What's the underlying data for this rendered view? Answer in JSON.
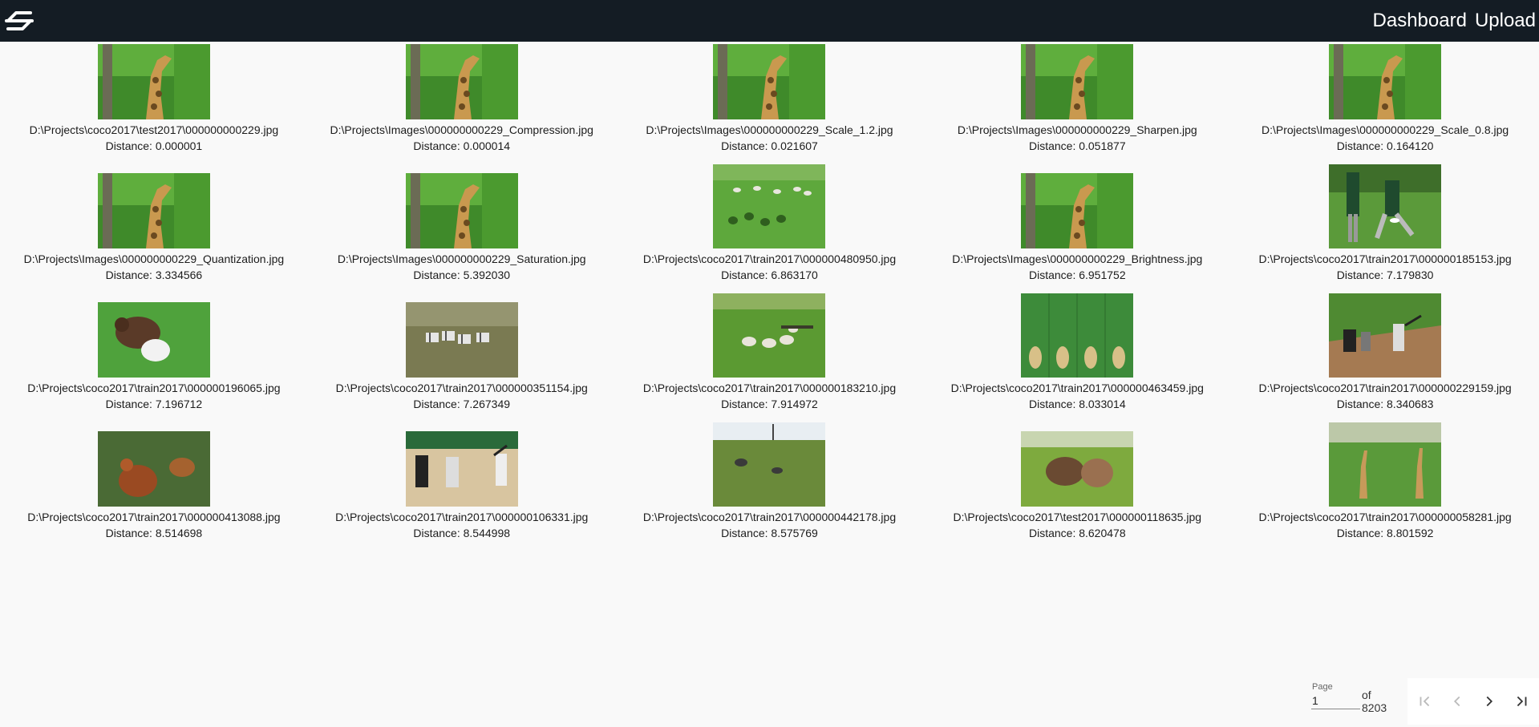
{
  "header": {
    "logo_icon": "flow-logo-icon",
    "nav": [
      {
        "label": "Dashboard"
      },
      {
        "label": "Upload"
      }
    ]
  },
  "results": [
    {
      "path": "D:\\Projects\\coco2017\\test2017\\000000000229.jpg",
      "distance": "Distance: 0.000001",
      "scene": "giraffe"
    },
    {
      "path": "D:\\Projects\\Images\\000000000229_Compression.jpg",
      "distance": "Distance: 0.000014",
      "scene": "giraffe"
    },
    {
      "path": "D:\\Projects\\Images\\000000000229_Scale_1.2.jpg",
      "distance": "Distance: 0.021607",
      "scene": "giraffe"
    },
    {
      "path": "D:\\Projects\\Images\\000000000229_Sharpen.jpg",
      "distance": "Distance: 0.051877",
      "scene": "giraffe"
    },
    {
      "path": "D:\\Projects\\Images\\000000000229_Scale_0.8.jpg",
      "distance": "Distance: 0.164120",
      "scene": "giraffe"
    },
    {
      "path": "D:\\Projects\\Images\\000000000229_Quantization.jpg",
      "distance": "Distance: 3.334566",
      "scene": "giraffe"
    },
    {
      "path": "D:\\Projects\\Images\\000000000229_Saturation.jpg",
      "distance": "Distance: 5.392030",
      "scene": "giraffe"
    },
    {
      "path": "D:\\Projects\\coco2017\\train2017\\000000480950.jpg",
      "distance": "Distance: 6.863170",
      "scene": "sheep-field"
    },
    {
      "path": "D:\\Projects\\Images\\000000000229_Brightness.jpg",
      "distance": "Distance: 6.951752",
      "scene": "giraffe"
    },
    {
      "path": "D:\\Projects\\coco2017\\train2017\\000000185153.jpg",
      "distance": "Distance: 7.179830",
      "scene": "frisbee-men"
    },
    {
      "path": "D:\\Projects\\coco2017\\train2017\\000000196065.jpg",
      "distance": "Distance: 7.196712",
      "scene": "dog-frisbee"
    },
    {
      "path": "D:\\Projects\\coco2017\\train2017\\000000351154.jpg",
      "distance": "Distance: 7.267349",
      "scene": "zebras"
    },
    {
      "path": "D:\\Projects\\coco2017\\train2017\\000000183210.jpg",
      "distance": "Distance: 7.914972",
      "scene": "sheep-pasture"
    },
    {
      "path": "D:\\Projects\\coco2017\\train2017\\000000463459.jpg",
      "distance": "Distance: 8.033014",
      "scene": "urinals"
    },
    {
      "path": "D:\\Projects\\coco2017\\train2017\\000000229159.jpg",
      "distance": "Distance: 8.340683",
      "scene": "baseball"
    },
    {
      "path": "D:\\Projects\\coco2017\\train2017\\000000413088.jpg",
      "distance": "Distance: 8.514698",
      "scene": "chickens"
    },
    {
      "path": "D:\\Projects\\coco2017\\train2017\\000000106331.jpg",
      "distance": "Distance: 8.544998",
      "scene": "baseball-2"
    },
    {
      "path": "D:\\Projects\\coco2017\\train2017\\000000442178.jpg",
      "distance": "Distance: 8.575769",
      "scene": "grass-field"
    },
    {
      "path": "D:\\Projects\\coco2017\\test2017\\000000118635.jpg",
      "distance": "Distance: 8.620478",
      "scene": "cattle"
    },
    {
      "path": "D:\\Projects\\coco2017\\train2017\\000000058281.jpg",
      "distance": "Distance: 8.801592",
      "scene": "giraffes-field"
    }
  ],
  "paginator": {
    "page_label": "Page",
    "page_value": "1",
    "of_text": "of 8203",
    "first_icon": "first-page-icon",
    "prev_icon": "chevron-left-icon",
    "next_icon": "chevron-right-icon",
    "last_icon": "last-page-icon"
  }
}
